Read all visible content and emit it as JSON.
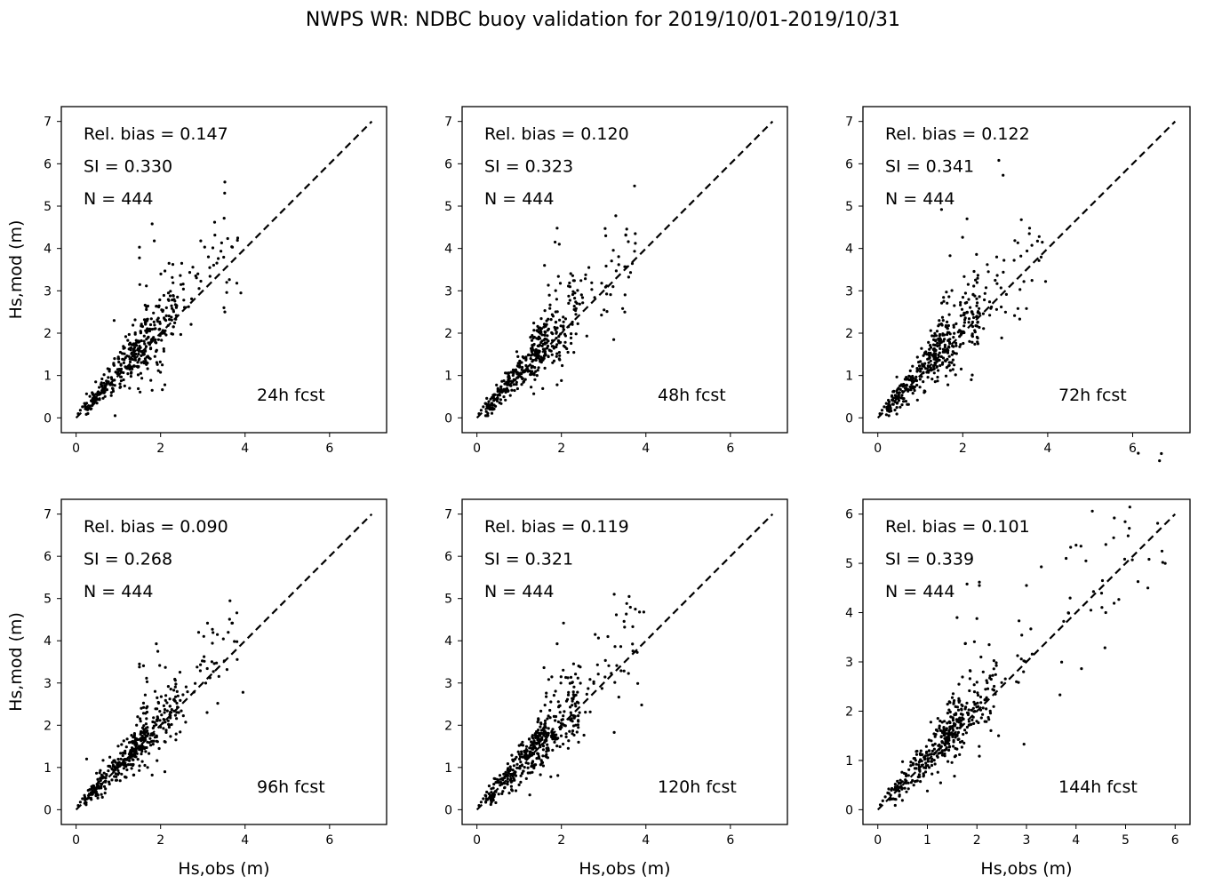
{
  "figure": {
    "title": "NWPS WR: NDBC buoy validation for 2019/10/01-2019/10/31"
  },
  "colors": {
    "points": "#000000",
    "axes": "#000000",
    "background": "#ffffff"
  },
  "chart_data": [
    {
      "type": "scatter",
      "panel_label": "24h fcst",
      "stats": [
        "Rel. bias =  0.147",
        "SI =  0.330",
        "N = 444"
      ],
      "xlabel": "",
      "ylabel": "Hs,mod (m)",
      "xlim": [
        -0.35,
        7.35
      ],
      "ylim": [
        -0.35,
        7.35
      ],
      "xticks": [
        0,
        2,
        4,
        6
      ],
      "yticks": [
        0,
        1,
        2,
        3,
        4,
        5,
        6,
        7
      ],
      "reference_line": {
        "style": "dashed",
        "from": [
          0,
          0
        ],
        "to": [
          7,
          7
        ]
      },
      "grid": false,
      "legend": "none",
      "n_points": 444,
      "point_seed": 24,
      "noise": 0.33,
      "bias": 0.147,
      "xmax_obs": 3.9,
      "points": [
        [
          1.8,
          4.58
        ],
        [
          1.85,
          4.18
        ],
        [
          1.5,
          4.03
        ],
        [
          1.5,
          3.78
        ],
        [
          2.95,
          4.18
        ],
        [
          3.7,
          4.03
        ],
        [
          3.9,
          2.95
        ],
        [
          3.5,
          2.6
        ],
        [
          1.8,
          0.65
        ],
        [
          2.1,
          0.78
        ],
        [
          0.9,
          2.3
        ],
        [
          2.2,
          3.65
        ],
        [
          2.5,
          3.65
        ]
      ]
    },
    {
      "type": "scatter",
      "panel_label": "48h fcst",
      "stats": [
        "Rel. bias =  0.120",
        "SI =  0.323",
        "N = 444"
      ],
      "xlabel": "",
      "ylabel": "",
      "xlim": [
        -0.35,
        7.35
      ],
      "ylim": [
        -0.35,
        7.35
      ],
      "xticks": [
        0,
        2,
        4,
        6
      ],
      "yticks": [
        0,
        1,
        2,
        3,
        4,
        5,
        6,
        7
      ],
      "reference_line": {
        "style": "dashed",
        "from": [
          0,
          0
        ],
        "to": [
          7,
          7
        ]
      },
      "grid": false,
      "legend": "none",
      "n_points": 444,
      "point_seed": 48,
      "noise": 0.32,
      "bias": 0.12,
      "xmax_obs": 3.8,
      "points": [
        [
          1.9,
          4.48
        ],
        [
          1.85,
          4.15
        ],
        [
          1.95,
          4.1
        ],
        [
          3.05,
          4.3
        ],
        [
          3.75,
          4.12
        ],
        [
          3.5,
          2.5
        ],
        [
          3.45,
          2.58
        ],
        [
          1.9,
          0.78
        ],
        [
          2.0,
          0.88
        ],
        [
          2.65,
          3.55
        ],
        [
          1.6,
          3.6
        ]
      ]
    },
    {
      "type": "scatter",
      "panel_label": "72h fcst",
      "stats": [
        "Rel. bias =  0.122",
        "SI =  0.341",
        "N = 444"
      ],
      "xlabel": "",
      "ylabel": "",
      "xlim": [
        -0.35,
        7.35
      ],
      "ylim": [
        -0.35,
        7.35
      ],
      "xticks": [
        0,
        2,
        4,
        6
      ],
      "yticks": [
        0,
        1,
        2,
        3,
        4,
        5,
        6,
        7
      ],
      "reference_line": {
        "style": "dashed",
        "from": [
          0,
          0
        ],
        "to": [
          7,
          7
        ]
      },
      "grid": false,
      "legend": "none",
      "n_points": 444,
      "point_seed": 72,
      "noise": 0.34,
      "bias": 0.122,
      "xmax_obs": 3.9,
      "points": [
        [
          2.85,
          6.08
        ],
        [
          2.95,
          5.73
        ],
        [
          2.1,
          4.7
        ],
        [
          1.5,
          4.92
        ],
        [
          3.8,
          4.28
        ],
        [
          3.95,
          3.22
        ],
        [
          3.3,
          2.58
        ],
        [
          3.5,
          2.58
        ],
        [
          1.65,
          0.78
        ],
        [
          2.2,
          0.9
        ],
        [
          1.7,
          3.83
        ],
        [
          2.8,
          3.8
        ]
      ]
    },
    {
      "type": "scatter",
      "panel_label": "96h fcst",
      "stats": [
        "Rel. bias =  0.090",
        "SI =  0.268",
        "N = 444"
      ],
      "xlabel": "Hs,obs (m)",
      "ylabel": "Hs,mod (m)",
      "xlim": [
        -0.35,
        7.35
      ],
      "ylim": [
        -0.35,
        7.35
      ],
      "xticks": [
        0,
        2,
        4,
        6
      ],
      "yticks": [
        0,
        1,
        2,
        3,
        4,
        5,
        6,
        7
      ],
      "reference_line": {
        "style": "dashed",
        "from": [
          0,
          0
        ],
        "to": [
          7,
          7
        ]
      },
      "grid": false,
      "legend": "none",
      "n_points": 444,
      "point_seed": 96,
      "noise": 0.27,
      "bias": 0.09,
      "xmax_obs": 3.9,
      "points": [
        [
          1.9,
          3.93
        ],
        [
          1.5,
          3.45
        ],
        [
          1.5,
          3.38
        ],
        [
          2.9,
          4.2
        ],
        [
          3.7,
          4.42
        ],
        [
          3.6,
          4.2
        ],
        [
          3.95,
          2.78
        ],
        [
          3.1,
          2.3
        ],
        [
          1.8,
          0.82
        ],
        [
          2.1,
          0.9
        ],
        [
          0.25,
          1.2
        ]
      ]
    },
    {
      "type": "scatter",
      "panel_label": "120h fcst",
      "stats": [
        "Rel. bias =  0.119",
        "SI =  0.321",
        "N = 444"
      ],
      "xlabel": "Hs,obs (m)",
      "ylabel": "",
      "xlim": [
        -0.35,
        7.35
      ],
      "ylim": [
        -0.35,
        7.35
      ],
      "xticks": [
        0,
        2,
        4,
        6
      ],
      "yticks": [
        0,
        1,
        2,
        3,
        4,
        5,
        6,
        7
      ],
      "reference_line": {
        "style": "dashed",
        "from": [
          0,
          0
        ],
        "to": [
          7,
          7
        ]
      },
      "grid": false,
      "legend": "none",
      "n_points": 444,
      "point_seed": 120,
      "noise": 0.32,
      "bias": 0.119,
      "xmax_obs": 3.95,
      "points": [
        [
          3.25,
          5.1
        ],
        [
          2.05,
          4.42
        ],
        [
          1.9,
          3.93
        ],
        [
          3.75,
          4.75
        ],
        [
          3.85,
          4.68
        ],
        [
          3.95,
          4.68
        ],
        [
          2.8,
          4.15
        ],
        [
          3.1,
          4.1
        ],
        [
          3.25,
          1.83
        ],
        [
          3.9,
          2.48
        ],
        [
          1.25,
          0.35
        ],
        [
          1.75,
          0.78
        ]
      ]
    },
    {
      "type": "scatter",
      "panel_label": "144h fcst",
      "stats": [
        "Rel. bias =  0.101",
        "SI =  0.339",
        "N = 444"
      ],
      "xlabel": "Hs,obs (m)",
      "ylabel": "",
      "xlim": [
        -0.3,
        6.3
      ],
      "ylim": [
        -0.3,
        6.3
      ],
      "xticks": [
        0,
        1,
        2,
        3,
        4,
        5,
        6
      ],
      "yticks": [
        0,
        1,
        2,
        3,
        4,
        5,
        6
      ],
      "reference_line": {
        "style": "dashed",
        "from": [
          0,
          0
        ],
        "to": [
          6,
          6
        ]
      },
      "grid": false,
      "legend": "none",
      "n_points": 444,
      "point_seed": 144,
      "noise": 0.3,
      "bias": 0.101,
      "xmax_obs": 5.8,
      "points": [
        [
          4.0,
          5.37
        ],
        [
          4.1,
          5.35
        ],
        [
          4.2,
          5.05
        ],
        [
          3.8,
          5.1
        ],
        [
          3.3,
          4.93
        ],
        [
          5.75,
          5.02
        ],
        [
          5.8,
          5.0
        ],
        [
          5.45,
          4.5
        ],
        [
          5.25,
          4.63
        ],
        [
          1.8,
          4.58
        ],
        [
          2.05,
          4.62
        ],
        [
          2.05,
          4.55
        ],
        [
          1.6,
          3.9
        ],
        [
          2.0,
          3.88
        ],
        [
          2.95,
          1.33
        ],
        [
          1.0,
          0.38
        ],
        [
          4.3,
          4.05
        ],
        [
          4.6,
          4.0
        ],
        [
          3.0,
          4.55
        ]
      ]
    }
  ]
}
